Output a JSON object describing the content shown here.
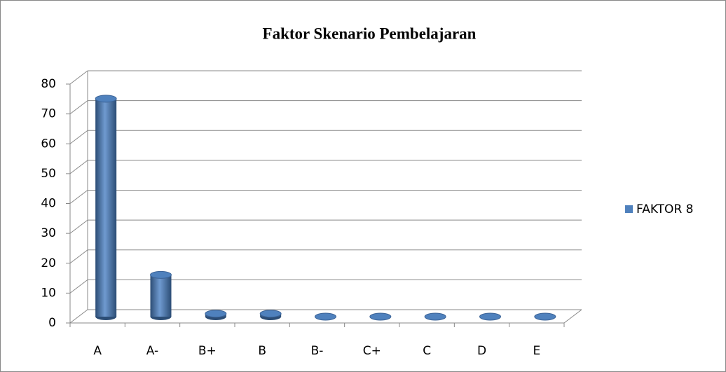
{
  "chart_data": {
    "type": "bar",
    "title": "Faktor Skenario Pembelajaran",
    "categories": [
      "A",
      "A-",
      "B+",
      "B",
      "B-",
      "C+",
      "C",
      "D",
      "E"
    ],
    "series": [
      {
        "name": "FAKTOR 8",
        "color": "#4f81bd",
        "values": [
          73,
          14,
          1,
          1,
          0,
          0,
          0,
          0,
          0
        ]
      }
    ],
    "ylim": [
      0,
      80
    ],
    "yticks": [
      0,
      10,
      20,
      30,
      40,
      50,
      60,
      70,
      80
    ],
    "grid": true,
    "legend": "right"
  }
}
